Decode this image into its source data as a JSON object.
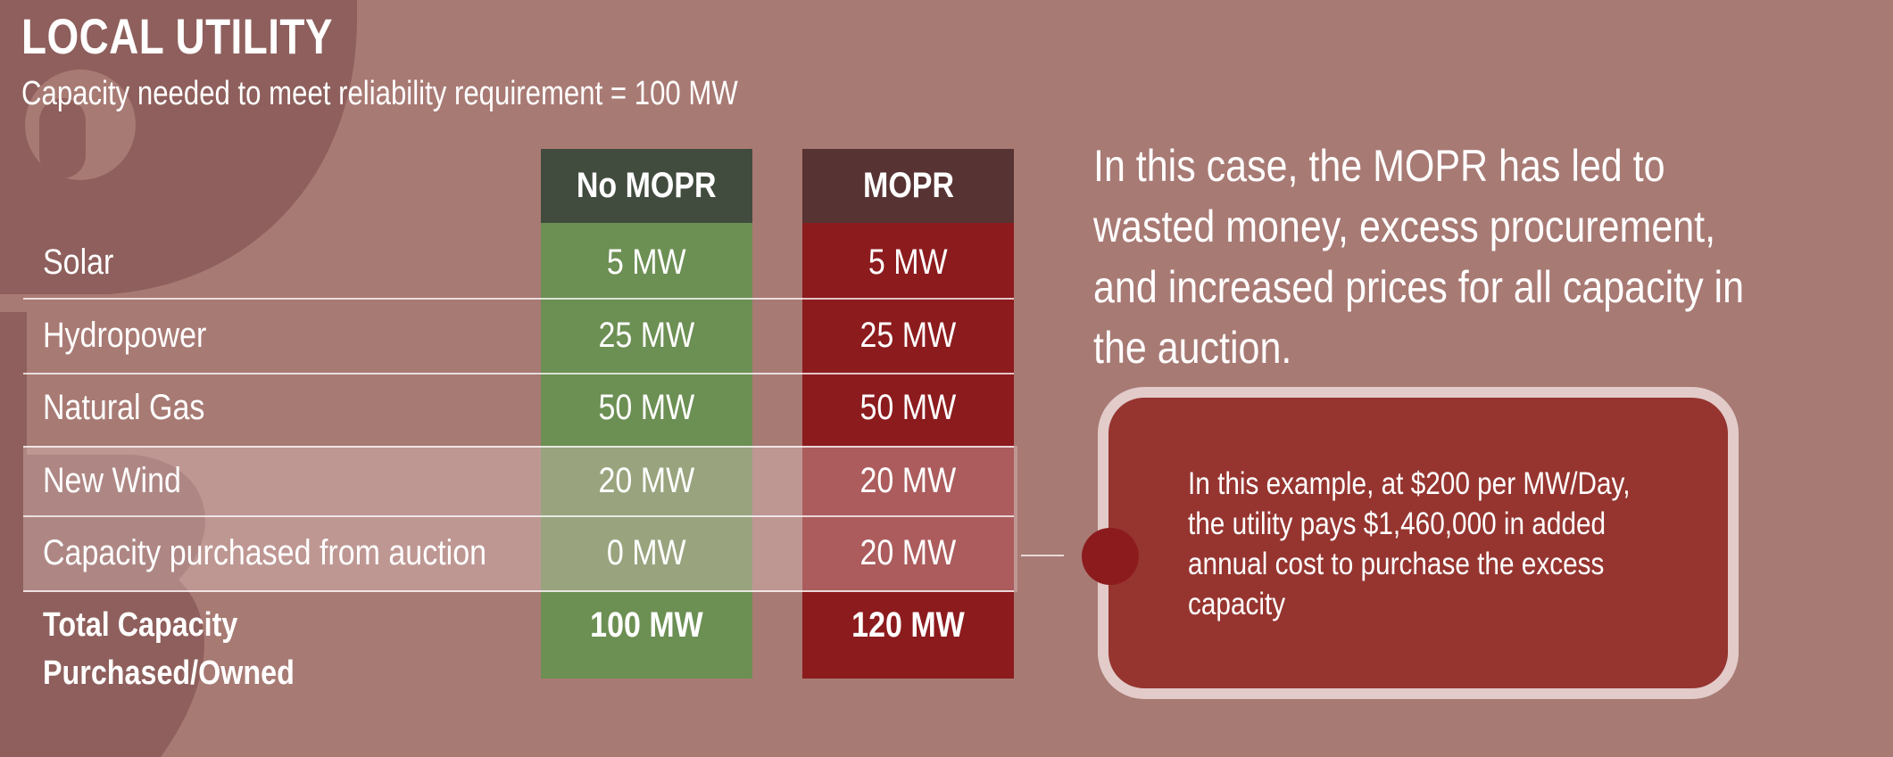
{
  "header": {
    "title": "LOCAL UTILITY",
    "subtitle": "Capacity needed to meet reliability requirement = 100 MW"
  },
  "table": {
    "columns": [
      "No MOPR",
      "MOPR"
    ],
    "rows": [
      {
        "label": "Solar",
        "no_mopr": "5 MW",
        "mopr": "5 MW"
      },
      {
        "label": "Hydropower",
        "no_mopr": "25 MW",
        "mopr": "25 MW"
      },
      {
        "label": "Natural Gas",
        "no_mopr": "50 MW",
        "mopr": "50 MW"
      },
      {
        "label": "New Wind",
        "no_mopr": "20 MW",
        "mopr": "20 MW"
      },
      {
        "label": "Capacity purchased from auction",
        "no_mopr": "0 MW",
        "mopr": "20 MW"
      }
    ],
    "total": {
      "label_line1": "Total Capacity",
      "label_line2": "Purchased/Owned",
      "no_mopr": "100 MW",
      "mopr": "120 MW"
    }
  },
  "case_text": "In this case, the MOPR has led to wasted money, excess procurement, and increased prices for all capacity in the auction.",
  "callout": {
    "text": "In this example, at $200 per MW/Day, the utility pays $1,460,000 in added annual cost to purchase the excess capacity"
  },
  "colors": {
    "background": "#a87a74",
    "no_mopr_header": "#414b3e",
    "no_mopr_body": "#6c8f53",
    "mopr_header": "#583333",
    "mopr_body": "#8c1b1e",
    "callout_fill": "#963530",
    "callout_border": "#e2cbc9"
  },
  "icons": {
    "background_watermark": "dollar-sign-icon"
  }
}
